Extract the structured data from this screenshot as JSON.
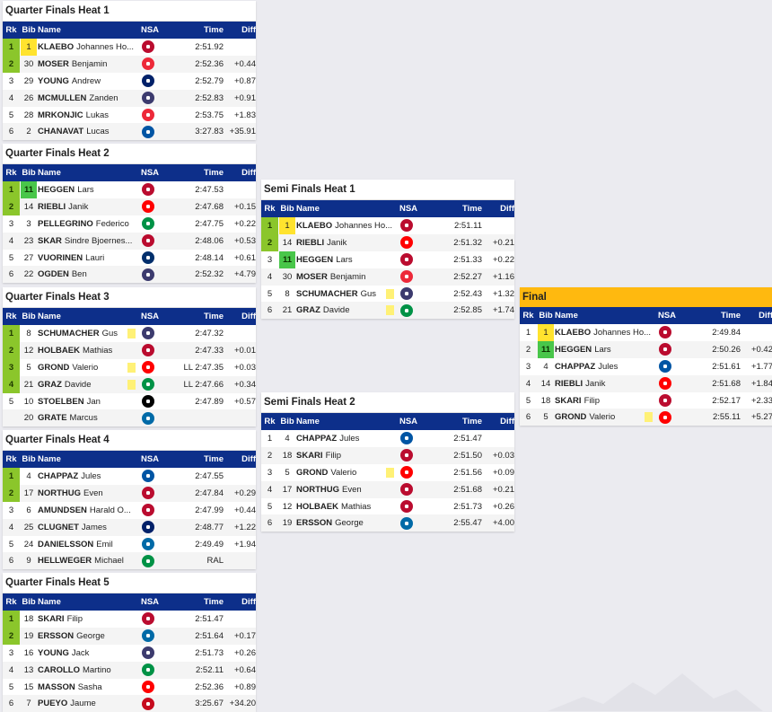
{
  "headers": {
    "rk": "Rk",
    "bib": "Bib",
    "name": "Name",
    "nsa": "NSA",
    "time": "Time",
    "diff": "Diff"
  },
  "flag_colors": {
    "NOR": "#ba0c2f",
    "AUT": "#ed2939",
    "GBR": "#012169",
    "USA": "#3c3b6e",
    "FRA": "#0055a4",
    "SUI": "#ff0000",
    "ITA": "#009246",
    "FIN": "#002f6c",
    "GER": "#000000",
    "SWE": "#006aa7",
    "CAN": "#ff0000",
    "ESP": "#c60b1e"
  },
  "heats": [
    {
      "id": "qf1",
      "title": "Quarter Finals Heat 1",
      "rows": [
        {
          "rk": "1",
          "q": true,
          "bib": "1",
          "bibColor": "yellow",
          "last": "KLAEBO",
          "first": "Johannes Ho...",
          "nsa": "NOR",
          "time": "2:51.92",
          "diff": ""
        },
        {
          "rk": "2",
          "q": true,
          "bib": "30",
          "last": "MOSER",
          "first": "Benjamin",
          "nsa": "AUT",
          "time": "2:52.36",
          "diff": "+0.44"
        },
        {
          "rk": "3",
          "bib": "29",
          "last": "YOUNG",
          "first": "Andrew",
          "nsa": "GBR",
          "time": "2:52.79",
          "diff": "+0.87"
        },
        {
          "rk": "4",
          "bib": "26",
          "last": "MCMULLEN",
          "first": "Zanden",
          "nsa": "USA",
          "time": "2:52.83",
          "diff": "+0.91"
        },
        {
          "rk": "5",
          "bib": "28",
          "last": "MRKONJIC",
          "first": "Lukas",
          "nsa": "AUT",
          "time": "2:53.75",
          "diff": "+1.83"
        },
        {
          "rk": "6",
          "bib": "2",
          "last": "CHANAVAT",
          "first": "Lucas",
          "nsa": "FRA",
          "time": "3:27.83",
          "diff": "+35.91"
        }
      ]
    },
    {
      "id": "qf2",
      "title": "Quarter Finals Heat 2",
      "rows": [
        {
          "rk": "1",
          "q": true,
          "bib": "11",
          "bibColor": "green",
          "last": "HEGGEN",
          "first": "Lars",
          "nsa": "NOR",
          "time": "2:47.53",
          "diff": ""
        },
        {
          "rk": "2",
          "q": true,
          "bib": "14",
          "last": "RIEBLI",
          "first": "Janik",
          "nsa": "SUI",
          "time": "2:47.68",
          "diff": "+0.15"
        },
        {
          "rk": "3",
          "bib": "3",
          "last": "PELLEGRINO",
          "first": "Federico",
          "nsa": "ITA",
          "time": "2:47.75",
          "diff": "+0.22"
        },
        {
          "rk": "4",
          "bib": "23",
          "last": "SKAR",
          "first": "Sindre Bjoernes...",
          "nsa": "NOR",
          "time": "2:48.06",
          "diff": "+0.53"
        },
        {
          "rk": "5",
          "bib": "27",
          "last": "VUORINEN",
          "first": "Lauri",
          "nsa": "FIN",
          "time": "2:48.14",
          "diff": "+0.61"
        },
        {
          "rk": "6",
          "bib": "22",
          "last": "OGDEN",
          "first": "Ben",
          "nsa": "USA",
          "time": "2:52.32",
          "diff": "+4.79"
        }
      ]
    },
    {
      "id": "qf3",
      "title": "Quarter Finals Heat 3",
      "rows": [
        {
          "rk": "1",
          "q": true,
          "bib": "8",
          "last": "SCHUMACHER",
          "first": "Gus",
          "card": true,
          "nsa": "USA",
          "time": "2:47.32",
          "diff": ""
        },
        {
          "rk": "2",
          "q": true,
          "bib": "12",
          "last": "HOLBAEK",
          "first": "Mathias",
          "nsa": "NOR",
          "time": "2:47.33",
          "diff": "+0.01"
        },
        {
          "rk": "3",
          "q": true,
          "bib": "5",
          "last": "GROND",
          "first": "Valerio",
          "card": true,
          "nsa": "SUI",
          "time": "LL 2:47.35",
          "diff": "+0.03"
        },
        {
          "rk": "4",
          "q": true,
          "bib": "21",
          "last": "GRAZ",
          "first": "Davide",
          "card": true,
          "nsa": "ITA",
          "time": "LL 2:47.66",
          "diff": "+0.34"
        },
        {
          "rk": "5",
          "bib": "10",
          "last": "STOELBEN",
          "first": "Jan",
          "nsa": "GER",
          "time": "2:47.89",
          "diff": "+0.57"
        },
        {
          "rk": "",
          "bib": "20",
          "last": "GRATE",
          "first": "Marcus",
          "nsa": "SWE",
          "time": "",
          "diff": ""
        }
      ]
    },
    {
      "id": "qf4",
      "title": "Quarter Finals Heat 4",
      "rows": [
        {
          "rk": "1",
          "q": true,
          "bib": "4",
          "last": "CHAPPAZ",
          "first": "Jules",
          "nsa": "FRA",
          "time": "2:47.55",
          "diff": ""
        },
        {
          "rk": "2",
          "q": true,
          "bib": "17",
          "last": "NORTHUG",
          "first": "Even",
          "nsa": "NOR",
          "time": "2:47.84",
          "diff": "+0.29"
        },
        {
          "rk": "3",
          "bib": "6",
          "last": "AMUNDSEN",
          "first": "Harald O...",
          "nsa": "NOR",
          "time": "2:47.99",
          "diff": "+0.44"
        },
        {
          "rk": "4",
          "bib": "25",
          "last": "CLUGNET",
          "first": "James",
          "nsa": "GBR",
          "time": "2:48.77",
          "diff": "+1.22"
        },
        {
          "rk": "5",
          "bib": "24",
          "last": "DANIELSSON",
          "first": "Emil",
          "nsa": "SWE",
          "time": "2:49.49",
          "diff": "+1.94"
        },
        {
          "rk": "6",
          "bib": "9",
          "last": "HELLWEGER",
          "first": "Michael",
          "nsa": "ITA",
          "time": "RAL",
          "diff": ""
        }
      ]
    },
    {
      "id": "qf5",
      "title": "Quarter Finals Heat 5",
      "rows": [
        {
          "rk": "1",
          "q": true,
          "bib": "18",
          "last": "SKARI",
          "first": "Filip",
          "nsa": "NOR",
          "time": "2:51.47",
          "diff": ""
        },
        {
          "rk": "2",
          "q": true,
          "bib": "19",
          "last": "ERSSON",
          "first": "George",
          "nsa": "SWE",
          "time": "2:51.64",
          "diff": "+0.17"
        },
        {
          "rk": "3",
          "bib": "16",
          "last": "YOUNG",
          "first": "Jack",
          "nsa": "USA",
          "time": "2:51.73",
          "diff": "+0.26"
        },
        {
          "rk": "4",
          "bib": "13",
          "last": "CAROLLO",
          "first": "Martino",
          "nsa": "ITA",
          "time": "2:52.11",
          "diff": "+0.64"
        },
        {
          "rk": "5",
          "bib": "15",
          "last": "MASSON",
          "first": "Sasha",
          "nsa": "CAN",
          "time": "2:52.36",
          "diff": "+0.89"
        },
        {
          "rk": "6",
          "bib": "7",
          "last": "PUEYO",
          "first": "Jaume",
          "nsa": "ESP",
          "time": "3:25.67",
          "diff": "+34.20"
        }
      ]
    },
    {
      "id": "sf1",
      "title": "Semi Finals Heat 1",
      "rows": [
        {
          "rk": "1",
          "q": true,
          "bib": "1",
          "bibColor": "yellow",
          "last": "KLAEBO",
          "first": "Johannes Ho...",
          "nsa": "NOR",
          "time": "2:51.11",
          "diff": ""
        },
        {
          "rk": "2",
          "q": true,
          "bib": "14",
          "last": "RIEBLI",
          "first": "Janik",
          "nsa": "SUI",
          "time": "2:51.32",
          "diff": "+0.21"
        },
        {
          "rk": "3",
          "bib": "11",
          "bibColor": "green",
          "last": "HEGGEN",
          "first": "Lars",
          "nsa": "NOR",
          "time": "2:51.33",
          "diff": "+0.22"
        },
        {
          "rk": "4",
          "bib": "30",
          "last": "MOSER",
          "first": "Benjamin",
          "nsa": "AUT",
          "time": "2:52.27",
          "diff": "+1.16"
        },
        {
          "rk": "5",
          "bib": "8",
          "last": "SCHUMACHER",
          "first": "Gus",
          "card": true,
          "nsa": "USA",
          "time": "2:52.43",
          "diff": "+1.32"
        },
        {
          "rk": "6",
          "bib": "21",
          "last": "GRAZ",
          "first": "Davide",
          "card": true,
          "nsa": "ITA",
          "time": "2:52.85",
          "diff": "+1.74"
        }
      ]
    },
    {
      "id": "sf2",
      "title": "Semi Finals Heat 2",
      "rows": [
        {
          "rk": "1",
          "bib": "4",
          "last": "CHAPPAZ",
          "first": "Jules",
          "nsa": "FRA",
          "time": "2:51.47",
          "diff": ""
        },
        {
          "rk": "2",
          "bib": "18",
          "last": "SKARI",
          "first": "Filip",
          "nsa": "NOR",
          "time": "2:51.50",
          "diff": "+0.03"
        },
        {
          "rk": "3",
          "bib": "5",
          "last": "GROND",
          "first": "Valerio",
          "card": true,
          "nsa": "SUI",
          "time": "2:51.56",
          "diff": "+0.09"
        },
        {
          "rk": "4",
          "bib": "17",
          "last": "NORTHUG",
          "first": "Even",
          "nsa": "NOR",
          "time": "2:51.68",
          "diff": "+0.21"
        },
        {
          "rk": "5",
          "bib": "12",
          "last": "HOLBAEK",
          "first": "Mathias",
          "nsa": "NOR",
          "time": "2:51.73",
          "diff": "+0.26"
        },
        {
          "rk": "6",
          "bib": "19",
          "last": "ERSSON",
          "first": "George",
          "nsa": "SWE",
          "time": "2:55.47",
          "diff": "+4.00"
        }
      ]
    },
    {
      "id": "final",
      "title": "Final",
      "rows": [
        {
          "rk": "1",
          "bib": "1",
          "bibColor": "yellow",
          "last": "KLAEBO",
          "first": "Johannes Ho...",
          "nsa": "NOR",
          "time": "2:49.84",
          "diff": ""
        },
        {
          "rk": "2",
          "bib": "11",
          "bibColor": "green",
          "last": "HEGGEN",
          "first": "Lars",
          "nsa": "NOR",
          "time": "2:50.26",
          "diff": "+0.42"
        },
        {
          "rk": "3",
          "bib": "4",
          "last": "CHAPPAZ",
          "first": "Jules",
          "nsa": "FRA",
          "time": "2:51.61",
          "diff": "+1.77"
        },
        {
          "rk": "4",
          "bib": "14",
          "last": "RIEBLI",
          "first": "Janik",
          "nsa": "SUI",
          "time": "2:51.68",
          "diff": "+1.84"
        },
        {
          "rk": "5",
          "bib": "18",
          "last": "SKARI",
          "first": "Filip",
          "nsa": "NOR",
          "time": "2:52.17",
          "diff": "+2.33"
        },
        {
          "rk": "6",
          "bib": "5",
          "last": "GROND",
          "first": "Valerio",
          "card": true,
          "nsa": "SUI",
          "time": "2:55.11",
          "diff": "+5.27"
        }
      ]
    }
  ]
}
